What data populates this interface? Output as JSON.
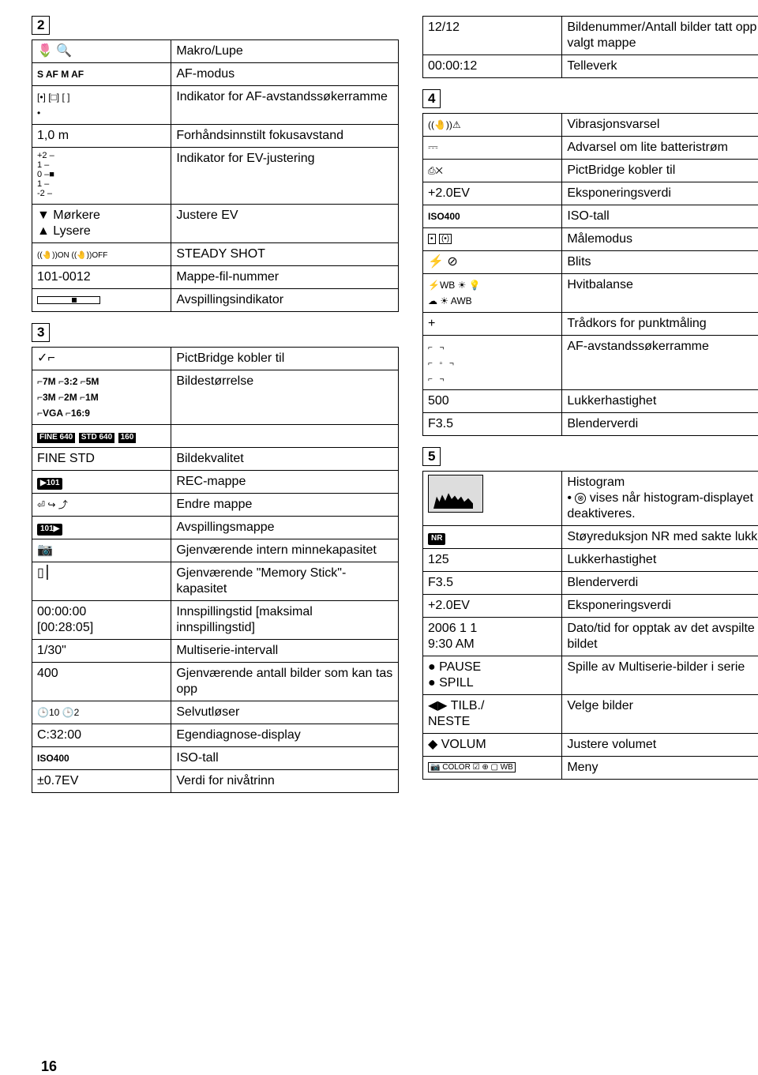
{
  "page_number": "16",
  "sections": {
    "s2": "2",
    "s3": "3",
    "top_right_heading": null,
    "s4": "4",
    "s5": "5"
  },
  "col_left": {
    "t2": [
      {
        "l": "🌷 🔍",
        "r": "Makro/Lupe"
      },
      {
        "l": "S AF  M AF",
        "lcls": "bold sm",
        "r": "AF-modus"
      },
      {
        "l": "[•] [□] [ ]\n•",
        "lcls": "sm",
        "r": "Indikator for AF-avstandssøkerramme"
      },
      {
        "l": "1,0 m",
        "r": "Forhåndsinnstilt fokusavstand"
      },
      {
        "l_html": "ev",
        "r": "Indikator for EV-justering"
      },
      {
        "l": "▼ Mørkere\n▲ Lysere",
        "r": "Justere EV"
      },
      {
        "l": "((🤚))ON  ((🤚))OFF",
        "lcls": "xs",
        "r": "STEADY SHOT"
      },
      {
        "l": "101-0012",
        "r": "Mappe-fil-nummer"
      },
      {
        "l_html": "prog",
        "r": "Avspillingsindikator"
      }
    ],
    "t3": [
      {
        "l": "✓⌐",
        "r": "PictBridge kobler til"
      },
      {
        "l_html": "sizes",
        "r": "Bildestørrelse"
      },
      {
        "l_html": "fine160",
        "r": ""
      },
      {
        "l": "FINE STD",
        "r": "Bildekvalitet"
      },
      {
        "l_html": "rec101",
        "r": "REC-mappe"
      },
      {
        "l": "⏎ ↪ ⤴",
        "lcls": "sm",
        "r": "Endre mappe"
      },
      {
        "l_html": "play101",
        "r": "Avspillingsmappe"
      },
      {
        "l": "📷",
        "r": "Gjenværende intern minnekapasitet"
      },
      {
        "l": "▯⎮",
        "r": "Gjenværende \"Memory Stick\"-kapasitet"
      },
      {
        "l": "00:00:00\n[00:28:05]",
        "r": "Innspillingstid [maksimal innspillingstid]"
      },
      {
        "l": "1/30\"",
        "r": "Multiserie-intervall"
      },
      {
        "l": "400",
        "r": "Gjenværende antall bilder som kan tas opp"
      },
      {
        "l": "🕒10  🕒2",
        "lcls": "sm",
        "r": "Selvutløser"
      },
      {
        "l": "C:32:00",
        "r": "Egendiagnose-display"
      },
      {
        "l": "ISO400",
        "lcls": "bold sm",
        "r": "ISO-tall"
      },
      {
        "l": "±0.7EV",
        "r": "Verdi for nivåtrinn"
      }
    ]
  },
  "col_right": {
    "ttop": [
      {
        "l": "12/12",
        "r": "Bildenummer/Antall bilder tatt opp i valgt mappe"
      },
      {
        "l": "00:00:12",
        "r": "Telleverk"
      }
    ],
    "t4": [
      {
        "l": "((🤚))⚠",
        "lcls": "sm",
        "r": "Vibrasjonsvarsel"
      },
      {
        "l": "⎓",
        "r": "Advarsel om lite batteristrøm"
      },
      {
        "l": "⎙✕",
        "lcls": "sm",
        "r": "PictBridge kobler til"
      },
      {
        "l": "+2.0EV",
        "r": "Eksponeringsverdi"
      },
      {
        "l": "ISO400",
        "lcls": "bold sm",
        "r": "ISO-tall"
      },
      {
        "l_html": "meter",
        "r": "Målemodus"
      },
      {
        "l": "⚡ ⊘",
        "r": "Blits"
      },
      {
        "l_html": "wb",
        "r": "Hvitbalanse"
      },
      {
        "l": "+",
        "r": "Trådkors for punktmåling"
      },
      {
        "l_html": "afframe",
        "r": "AF-avstandssøkerramme"
      },
      {
        "l": "500",
        "r": "Lukkerhastighet"
      },
      {
        "l": "F3.5",
        "r": "Blenderverdi"
      }
    ],
    "t5": [
      {
        "l_html": "histo",
        "r_html": "histor"
      },
      {
        "l_html": "nr",
        "r": "Støyreduksjon NR med sakte lukker"
      },
      {
        "l": "125",
        "r": "Lukkerhastighet"
      },
      {
        "l": "F3.5",
        "r": "Blenderverdi"
      },
      {
        "l": "+2.0EV",
        "r": "Eksponeringsverdi"
      },
      {
        "l": "2006 1 1\n9:30 AM",
        "r": "Dato/tid for opptak av det avspilte bildet"
      },
      {
        "l": "● PAUSE\n● SPILL",
        "r": "Spille av Multiserie-bilder i serie"
      },
      {
        "l": "◀▶ TILB./\nNESTE",
        "r": "Velge bilder"
      },
      {
        "l": "◆ VOLUM",
        "r": "Justere volumet"
      },
      {
        "l_html": "menubar",
        "r": "Meny"
      }
    ],
    "histo_text": {
      "t1": "Histogram",
      "t2a": "• ",
      "t2b": " vises når histogram-displayet deaktiveres.",
      "icon": "⊗"
    }
  },
  "ev_scale": {
    "rows": [
      "+2 –",
      "  1 –",
      "  0 –■",
      "  1 –",
      " -2 –"
    ]
  },
  "sizes_line1": "⌐7M  ⌐3:2  ⌐5M",
  "sizes_line2": "⌐3M  ⌐2M  ⌐1M",
  "sizes_line3": "⌐VGA  ⌐16:9",
  "fine160_a": "FINE 640",
  "fine160_b": "STD 640",
  "fine160_c": "160",
  "rec101": "▶101",
  "play101": "101▶",
  "meter_a": "•",
  "meter_b": "(•)",
  "wb_l1": "⚡WB ☀ 💡",
  "wb_l2": "☁ ☀ AWB",
  "af_rows": [
    "⌐   ¬",
    "⌐ ▫ ¬",
    "⌐   ¬"
  ],
  "nr": "NR",
  "menubar": "📷 COLOR ☑ ⊕ ▢ WB"
}
